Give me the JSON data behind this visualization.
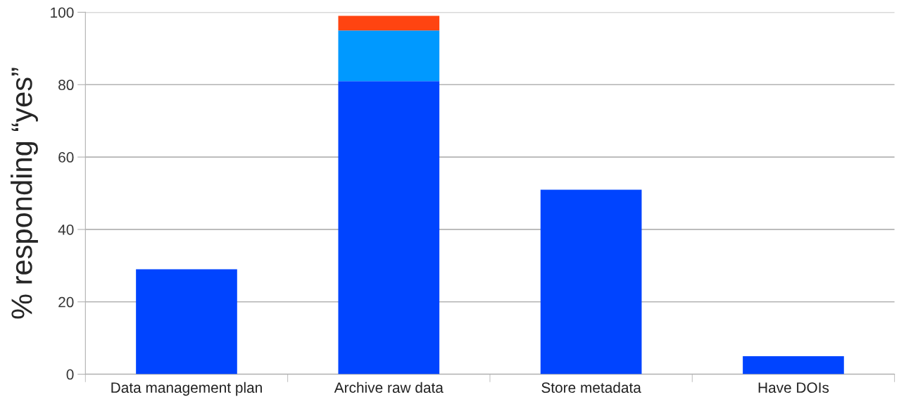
{
  "chart_data": {
    "type": "bar",
    "ylabel": "% responding “yes”",
    "categories": [
      "Data management plan",
      "Archive raw data",
      "Store metadata",
      "Have DOIs"
    ],
    "stacked": true,
    "series": [
      {
        "color": "#0044ff",
        "values": [
          29,
          81,
          51,
          5
        ]
      },
      {
        "color": "#0099ff",
        "values": [
          null,
          14,
          null,
          null
        ]
      },
      {
        "color": "#ff4411",
        "values": [
          null,
          4,
          null,
          null
        ]
      }
    ],
    "ylim": [
      0,
      100
    ],
    "yticks": [
      0,
      20,
      40,
      60,
      80,
      100
    ],
    "grid": "y"
  }
}
